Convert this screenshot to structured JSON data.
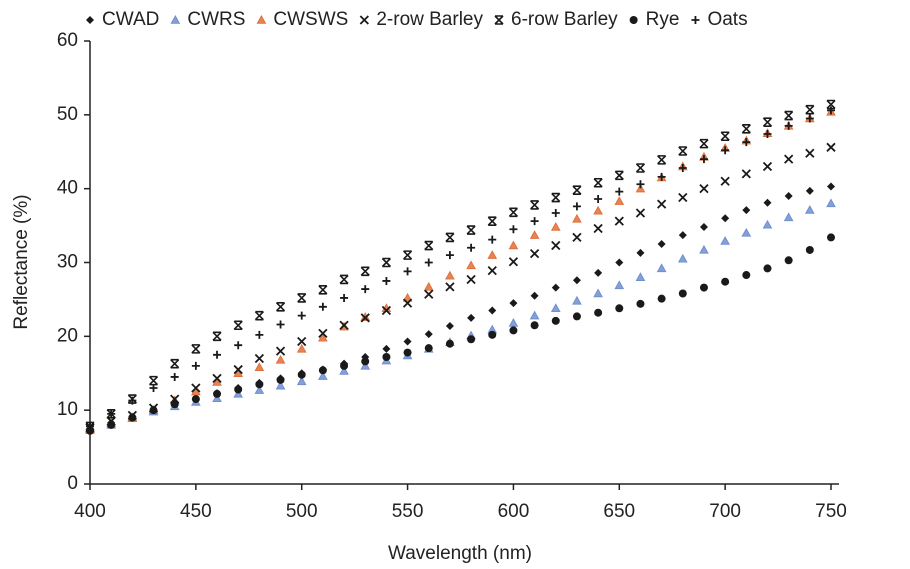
{
  "chart_data": {
    "type": "scatter",
    "x_label": "Wavelength (nm)",
    "y_label": "Reflectance (%)",
    "x": [
      400,
      410,
      420,
      430,
      440,
      450,
      460,
      470,
      480,
      490,
      500,
      510,
      520,
      530,
      540,
      550,
      560,
      570,
      580,
      590,
      600,
      610,
      620,
      630,
      640,
      650,
      660,
      670,
      680,
      690,
      700,
      710,
      720,
      730,
      740,
      750
    ],
    "xlim": [
      400,
      750
    ],
    "ylim": [
      0,
      60
    ],
    "xticks": [
      400,
      450,
      500,
      550,
      600,
      650,
      700,
      750
    ],
    "yticks": [
      0,
      10,
      20,
      30,
      40,
      50,
      60
    ],
    "legend": "top",
    "series": [
      {
        "name": "CWAD",
        "color": "#1a1a1a",
        "marker": "diamond",
        "values": [
          7.5,
          8.3,
          9.1,
          10,
          10.8,
          11.6,
          12.3,
          13,
          13.7,
          14.3,
          15,
          15.5,
          16.3,
          17.2,
          18.3,
          19.3,
          20.3,
          21.4,
          22.5,
          23.5,
          24.5,
          25.5,
          26.6,
          27.6,
          28.6,
          30,
          31.3,
          32.5,
          33.7,
          34.8,
          36,
          37.1,
          38.1,
          39,
          39.7,
          40.3
        ]
      },
      {
        "name": "CWRS",
        "color": "#6f8fd0",
        "marker": "triangle",
        "values": [
          7.3,
          8,
          8.9,
          9.8,
          10.5,
          11.1,
          11.6,
          12.2,
          12.7,
          13.3,
          13.9,
          14.6,
          15.3,
          16,
          16.7,
          17.4,
          18.3,
          19.2,
          20.1,
          20.9,
          21.8,
          22.8,
          23.8,
          24.8,
          25.8,
          26.9,
          28,
          29.2,
          30.5,
          31.7,
          32.9,
          34,
          35.1,
          36.1,
          37.1,
          38
        ]
      },
      {
        "name": "CWSWS",
        "color": "#e0703a",
        "marker": "triangle",
        "values": [
          7.4,
          8.2,
          9,
          10,
          11.3,
          12.5,
          13.8,
          15,
          15.8,
          16.8,
          18.3,
          19.8,
          21.3,
          22.6,
          23.8,
          25.2,
          26.7,
          28.2,
          29.6,
          31,
          32.3,
          33.7,
          34.8,
          35.9,
          37,
          38.3,
          40,
          41.5,
          43,
          44.3,
          45.5,
          46.5,
          47.5,
          48.5,
          49.5,
          50.4
        ]
      },
      {
        "name": "2-row Barley",
        "color": "#1a1a1a",
        "marker": "x",
        "values": [
          7.6,
          8.5,
          9.3,
          10.3,
          11.5,
          13,
          14.3,
          15.5,
          17,
          18,
          19.3,
          20.4,
          21.5,
          22.5,
          23.5,
          24.5,
          25.7,
          26.7,
          27.7,
          28.9,
          30.1,
          31.2,
          32.3,
          33.4,
          34.6,
          35.6,
          36.7,
          37.9,
          38.8,
          40,
          41,
          42,
          43,
          44,
          44.8,
          45.6
        ]
      },
      {
        "name": "6-row Barley",
        "color": "#1a1a1a",
        "marker": "x-bar",
        "values": [
          7.8,
          9.5,
          11.5,
          14,
          16.3,
          18.3,
          20,
          21.5,
          22.8,
          24,
          25.2,
          26.3,
          27.7,
          28.8,
          30,
          31,
          32.3,
          33.4,
          34.4,
          35.6,
          36.8,
          37.8,
          38.8,
          39.8,
          40.8,
          41.8,
          42.8,
          43.9,
          45.1,
          46.1,
          47.1,
          48.1,
          49,
          49.9,
          50.7,
          51.4
        ]
      },
      {
        "name": "Rye",
        "color": "#1a1a1a",
        "marker": "circle",
        "values": [
          7.2,
          8,
          9,
          10,
          10.8,
          11.5,
          12.2,
          12.8,
          13.5,
          14.1,
          14.8,
          15.4,
          16,
          16.6,
          17.2,
          17.8,
          18.4,
          19,
          19.6,
          20.2,
          20.8,
          21.5,
          22.1,
          22.7,
          23.2,
          23.8,
          24.4,
          25.1,
          25.8,
          26.6,
          27.4,
          28.3,
          29.2,
          30.3,
          31.7,
          33.4
        ]
      },
      {
        "name": "Oats",
        "color": "#1a1a1a",
        "marker": "plus",
        "values": [
          7.8,
          9.5,
          11.3,
          13,
          14.5,
          16,
          17.5,
          18.8,
          20.2,
          21.6,
          22.8,
          24,
          25.2,
          26.4,
          27.5,
          28.8,
          30,
          31,
          32,
          33.1,
          34.5,
          35.6,
          36.7,
          37.6,
          38.6,
          39.6,
          40.6,
          41.6,
          42.8,
          44,
          45.2,
          46.3,
          47.4,
          48.5,
          49.5,
          50.6
        ]
      }
    ]
  }
}
